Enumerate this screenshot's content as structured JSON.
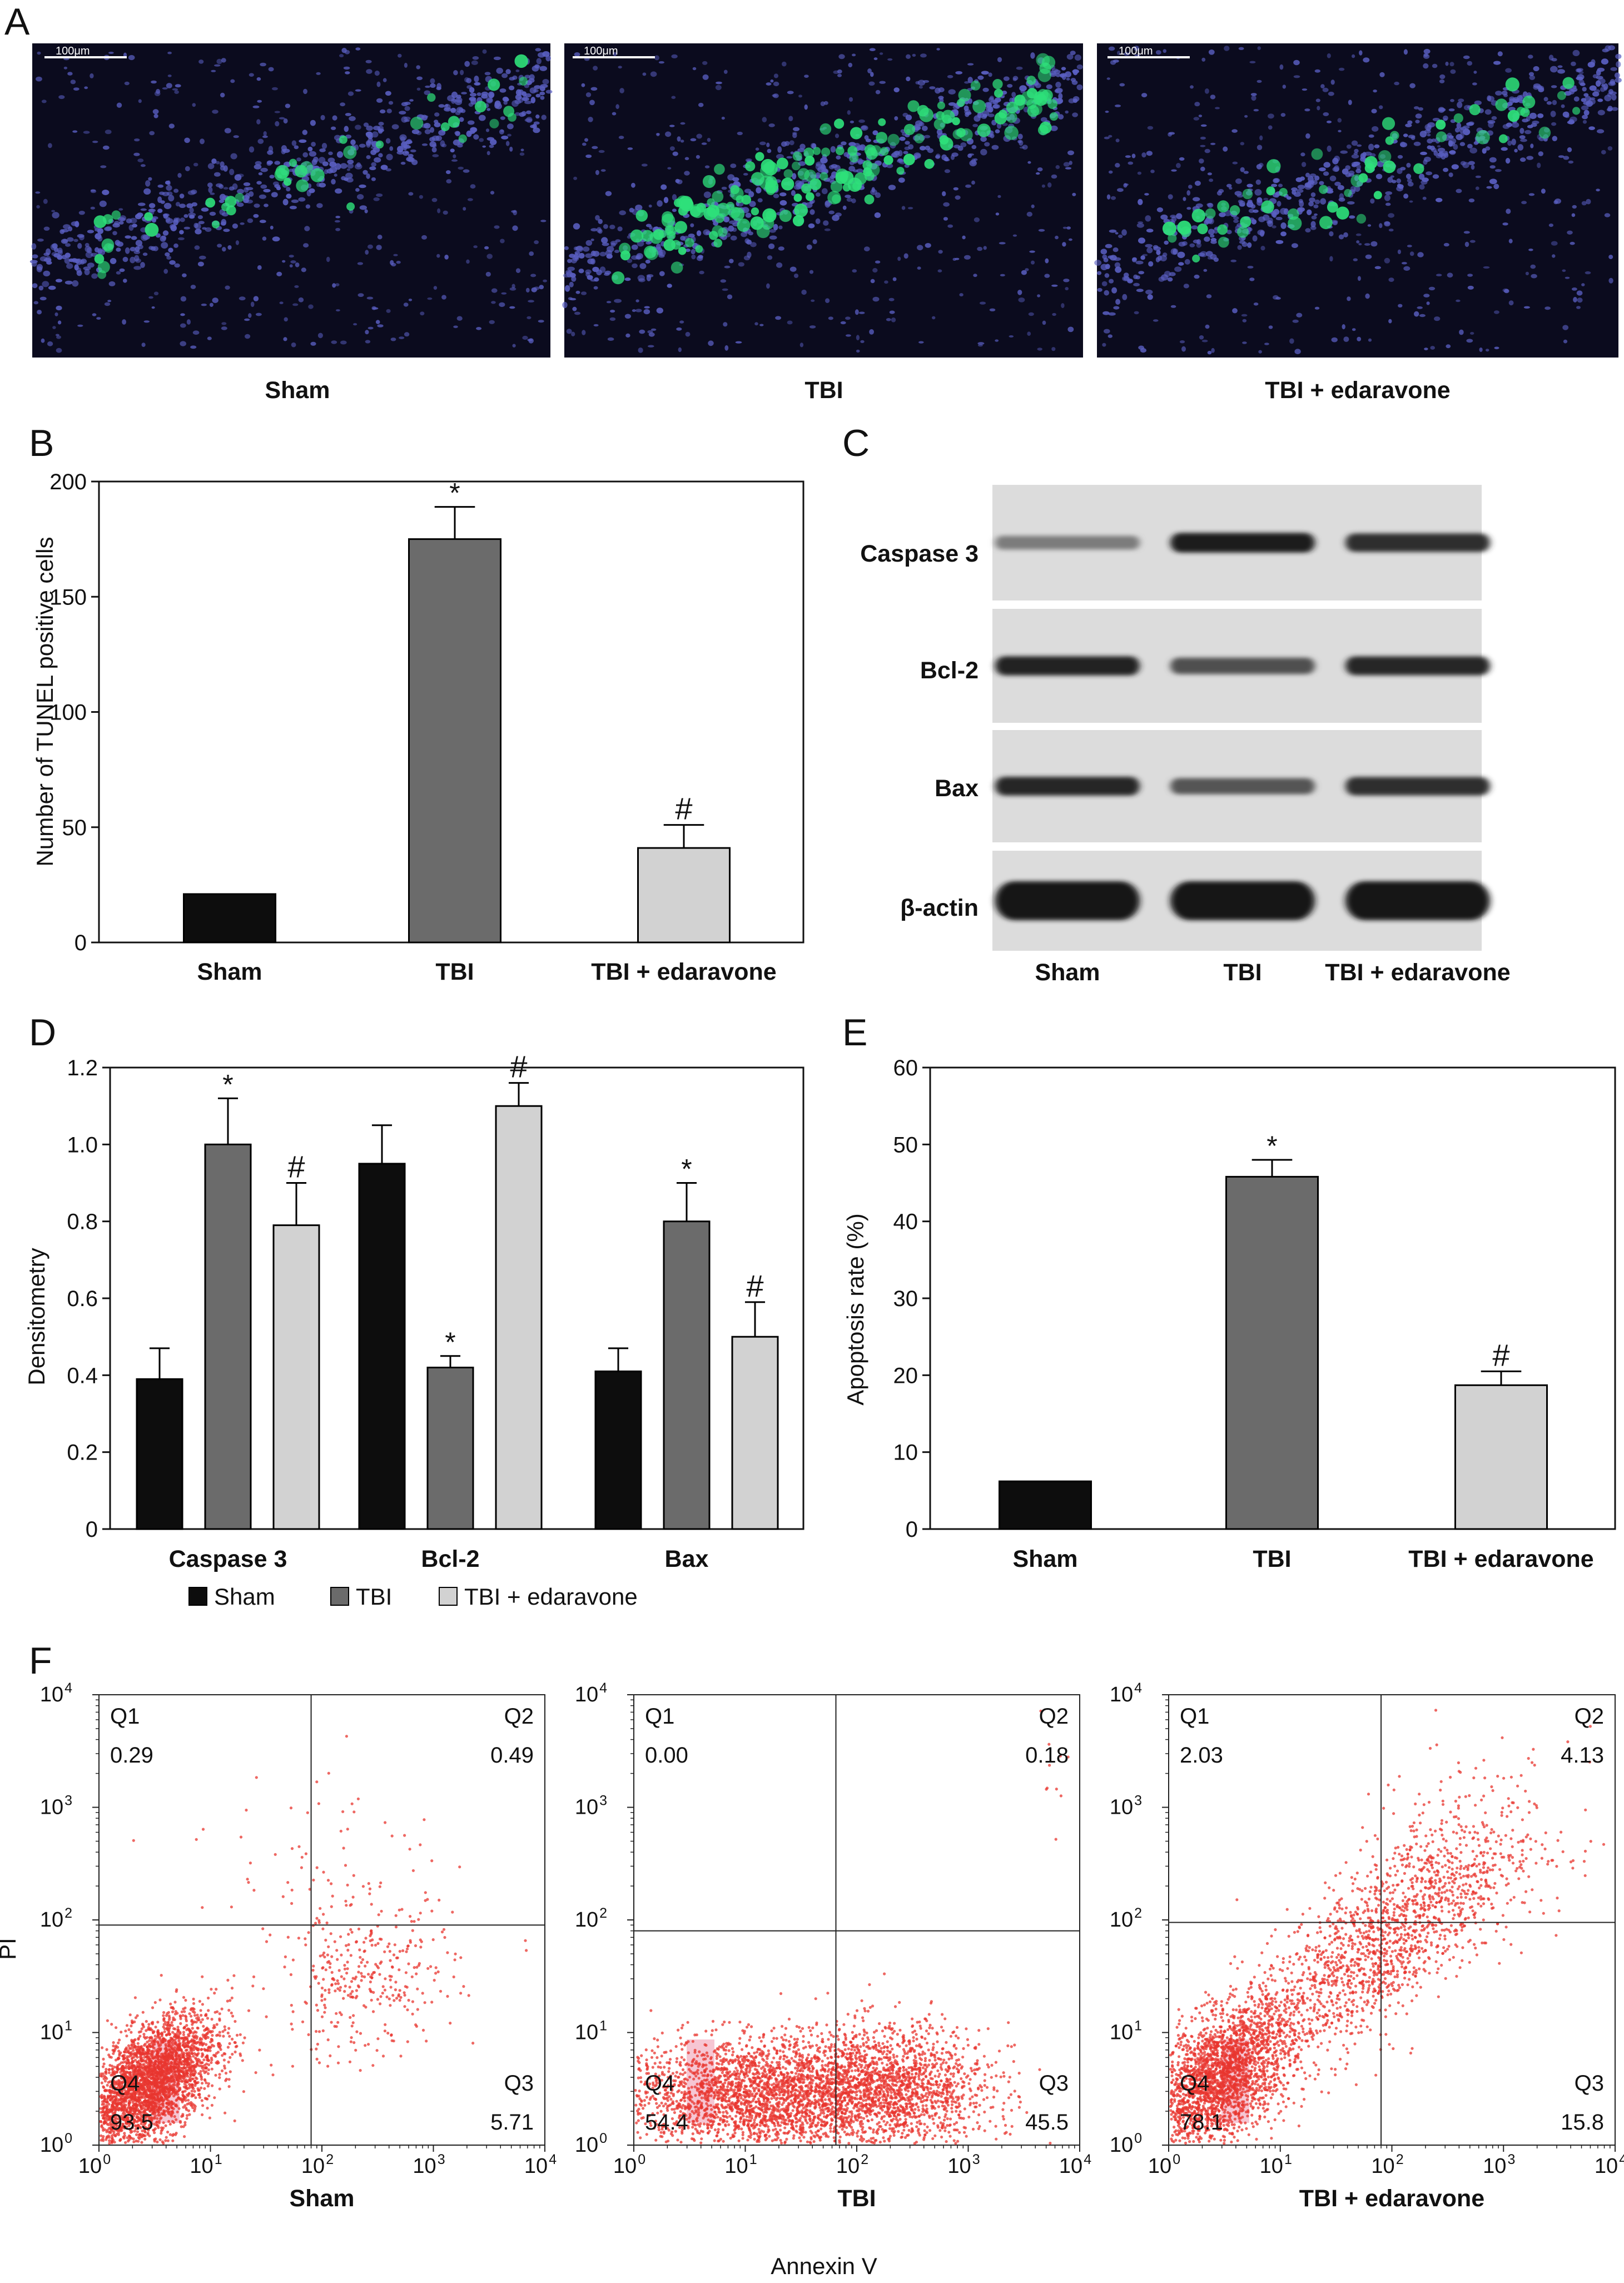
{
  "panel_letters": {
    "A": "A",
    "B": "B",
    "C": "C",
    "D": "D",
    "E": "E",
    "F": "F"
  },
  "panelA": {
    "images": [
      {
        "caption": "Sham",
        "scale_bar": "100μm"
      },
      {
        "caption": "TBI",
        "scale_bar": "100μm"
      },
      {
        "caption": "TBI + edaravone",
        "scale_bar": "100μm"
      }
    ],
    "colors": {
      "background": "#0b0b1e",
      "nuclei": "#5a5fc2",
      "tunel": "#2ee07a"
    }
  },
  "panelC": {
    "row_labels": [
      "Caspase 3",
      "Bcl-2",
      "Bax",
      "β-actin"
    ],
    "lane_labels": [
      "Sham",
      "TBI",
      "TBI + edaravone"
    ],
    "band_intensity": [
      [
        0.2,
        0.95,
        0.8
      ],
      [
        0.9,
        0.55,
        0.85
      ],
      [
        0.85,
        0.5,
        0.8
      ],
      [
        1.0,
        1.0,
        1.0
      ]
    ]
  },
  "chart_data": [
    {
      "id": "B",
      "type": "bar",
      "categories": [
        "Sham",
        "TBI",
        "TBI + edaravone"
      ],
      "values": [
        21,
        175,
        41
      ],
      "errors": [
        0,
        14,
        10
      ],
      "markers": [
        "",
        "*",
        "#"
      ],
      "ylabel": "Number of TUNEL positive cells",
      "ylim": [
        0,
        200
      ],
      "yticks": [
        "0",
        "50",
        "100",
        "150",
        "200"
      ],
      "colors": [
        "#0d0d0d",
        "#6b6b6b",
        "#d2d2d2"
      ]
    },
    {
      "id": "D",
      "type": "bar",
      "categories": [
        "Caspase 3",
        "Bcl-2",
        "Bax"
      ],
      "series": [
        {
          "name": "Sham",
          "values": [
            0.39,
            0.95,
            0.41
          ],
          "errors": [
            0.08,
            0.1,
            0.06
          ],
          "markers": [
            "",
            "",
            ""
          ],
          "color": "#0d0d0d"
        },
        {
          "name": "TBI",
          "values": [
            1.0,
            0.42,
            0.8
          ],
          "errors": [
            0.12,
            0.03,
            0.1
          ],
          "markers": [
            "*",
            "*",
            "*"
          ],
          "color": "#6b6b6b"
        },
        {
          "name": "TBI + edaravone",
          "values": [
            0.79,
            1.1,
            0.5
          ],
          "errors": [
            0.11,
            0.06,
            0.09
          ],
          "markers": [
            "#",
            "#",
            "#"
          ],
          "color": "#d2d2d2"
        }
      ],
      "ylabel": "Densitometry",
      "ylim": [
        0,
        1.2
      ],
      "yticks": [
        "0",
        "0.2",
        "0.4",
        "0.6",
        "0.8",
        "1.0",
        "1.2"
      ],
      "legend_position": "bottom"
    },
    {
      "id": "E",
      "type": "bar",
      "categories": [
        "Sham",
        "TBI",
        "TBI + edaravone"
      ],
      "values": [
        6.2,
        45.8,
        18.7
      ],
      "errors": [
        0,
        2.2,
        1.8
      ],
      "markers": [
        "",
        "*",
        "#"
      ],
      "ylabel": "Apoptosis rate (%)",
      "ylim": [
        0,
        60
      ],
      "yticks": [
        "0",
        "10",
        "20",
        "30",
        "40",
        "50",
        "60"
      ],
      "colors": [
        "#0d0d0d",
        "#6b6b6b",
        "#d2d2d2"
      ]
    },
    {
      "id": "F",
      "type": "scatter",
      "xlabel": "Annexin V",
      "ylabel": "PI",
      "scale": "log",
      "xlim": [
        1,
        10000
      ],
      "ylim": [
        1,
        10000
      ],
      "tick_base": "10",
      "tick_exponents": [
        "0",
        "1",
        "2",
        "3",
        "4"
      ],
      "point_color": "#e8352f",
      "plots": [
        {
          "title": "Sham",
          "gate_x": 80,
          "gate_y": 90,
          "quadrants": {
            "Q1": "0.29",
            "Q2": "0.49",
            "Q3": "5.71",
            "Q4": "93.5"
          }
        },
        {
          "title": "TBI",
          "gate_x": 65,
          "gate_y": 80,
          "quadrants": {
            "Q1": "0.00",
            "Q2": "0.18",
            "Q3": "45.5",
            "Q4": "54.4"
          }
        },
        {
          "title": "TBI + edaravone",
          "gate_x": 80,
          "gate_y": 95,
          "quadrants": {
            "Q1": "2.03",
            "Q2": "4.13",
            "Q3": "15.8",
            "Q4": "78.1"
          }
        }
      ],
      "quadrant_labels": [
        "Q1",
        "Q2",
        "Q3",
        "Q4"
      ]
    }
  ]
}
